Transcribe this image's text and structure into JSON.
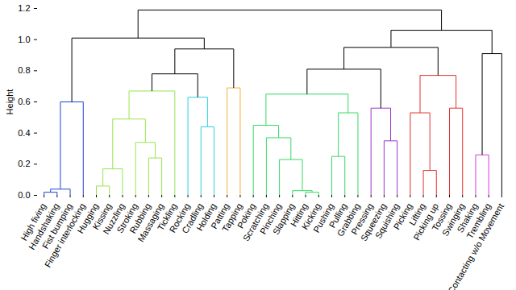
{
  "chart_data": {
    "type": "dendrogram",
    "ylabel": "Height",
    "ylim": [
      0,
      1.2
    ],
    "yticks": [
      0,
      0.2,
      0.4,
      0.6,
      0.8,
      1,
      1.2
    ],
    "leaves": [
      "High fiving",
      "Handshaking",
      "Fist bumping",
      "Finger interlocking",
      "Hugging",
      "Kissing",
      "Nuzzling",
      "Stroking",
      "Rubbing",
      "Massaging",
      "Tickling",
      "Rocking",
      "Cradling",
      "Holding",
      "Patting",
      "Tapping",
      "Poking",
      "Scratching",
      "Pinching",
      "Slapping",
      "Hitting",
      "Kicking",
      "Pushing",
      "Pulling",
      "Grabbing",
      "Pressing",
      "Squeezing",
      "Squishing",
      "Picking",
      "Lifting",
      "Picking up",
      "Tossing",
      "Swinging",
      "Shaking",
      "Trembling",
      "Contacting w/o Movement"
    ],
    "merges": [
      {
        "left": 0,
        "right": 1,
        "height": 0.02,
        "color": "#2142d6"
      },
      {
        "left": 36,
        "right": 2,
        "height": 0.04,
        "color": "#2142d6"
      },
      {
        "left": 37,
        "right": 3,
        "height": 0.6,
        "color": "#2142d6"
      },
      {
        "left": 4,
        "right": 5,
        "height": 0.06,
        "color": "#9be34f"
      },
      {
        "left": 39,
        "right": 6,
        "height": 0.17,
        "color": "#9be34f"
      },
      {
        "left": 8,
        "right": 9,
        "height": 0.24,
        "color": "#9be34f"
      },
      {
        "left": 7,
        "right": 41,
        "height": 0.34,
        "color": "#9be34f"
      },
      {
        "left": 40,
        "right": 42,
        "height": 0.49,
        "color": "#9be34f"
      },
      {
        "left": 43,
        "right": 10,
        "height": 0.67,
        "color": "#9be34f"
      },
      {
        "left": 12,
        "right": 13,
        "height": 0.44,
        "color": "#2fd0e0"
      },
      {
        "left": 11,
        "right": 45,
        "height": 0.63,
        "color": "#2fd0e0"
      },
      {
        "left": 44,
        "right": 46,
        "height": 0.78,
        "color": "#000000"
      },
      {
        "left": 14,
        "right": 15,
        "height": 0.69,
        "color": "#f2b132"
      },
      {
        "left": 47,
        "right": 48,
        "height": 0.94,
        "color": "#000000"
      },
      {
        "left": 38,
        "right": 49,
        "height": 1.01,
        "color": "#000000"
      },
      {
        "left": 20,
        "right": 21,
        "height": 0.02,
        "color": "#35d964"
      },
      {
        "left": 19,
        "right": 51,
        "height": 0.03,
        "color": "#35d964"
      },
      {
        "left": 18,
        "right": 52,
        "height": 0.23,
        "color": "#35d964"
      },
      {
        "left": 17,
        "right": 53,
        "height": 0.37,
        "color": "#35d964"
      },
      {
        "left": 16,
        "right": 54,
        "height": 0.45,
        "color": "#35d964"
      },
      {
        "left": 22,
        "right": 23,
        "height": 0.25,
        "color": "#35d964"
      },
      {
        "left": 56,
        "right": 24,
        "height": 0.53,
        "color": "#35d964"
      },
      {
        "left": 55,
        "right": 57,
        "height": 0.65,
        "color": "#35d964"
      },
      {
        "left": 26,
        "right": 27,
        "height": 0.35,
        "color": "#9a34cf"
      },
      {
        "left": 25,
        "right": 59,
        "height": 0.56,
        "color": "#9a34cf"
      },
      {
        "left": 58,
        "right": 60,
        "height": 0.81,
        "color": "#000000"
      },
      {
        "left": 29,
        "right": 30,
        "height": 0.16,
        "color": "#e3302f"
      },
      {
        "left": 28,
        "right": 62,
        "height": 0.53,
        "color": "#e3302f"
      },
      {
        "left": 31,
        "right": 32,
        "height": 0.56,
        "color": "#e3302f"
      },
      {
        "left": 63,
        "right": 64,
        "height": 0.77,
        "color": "#e3302f"
      },
      {
        "left": 61,
        "right": 65,
        "height": 0.95,
        "color": "#000000"
      },
      {
        "left": 33,
        "right": 34,
        "height": 0.26,
        "color": "#d93bd9"
      },
      {
        "left": 67,
        "right": 35,
        "height": 0.91,
        "color": "#000000"
      },
      {
        "left": 66,
        "right": 68,
        "height": 1.06,
        "color": "#000000"
      },
      {
        "left": 50,
        "right": 69,
        "height": 1.19,
        "color": "#000000"
      }
    ]
  }
}
